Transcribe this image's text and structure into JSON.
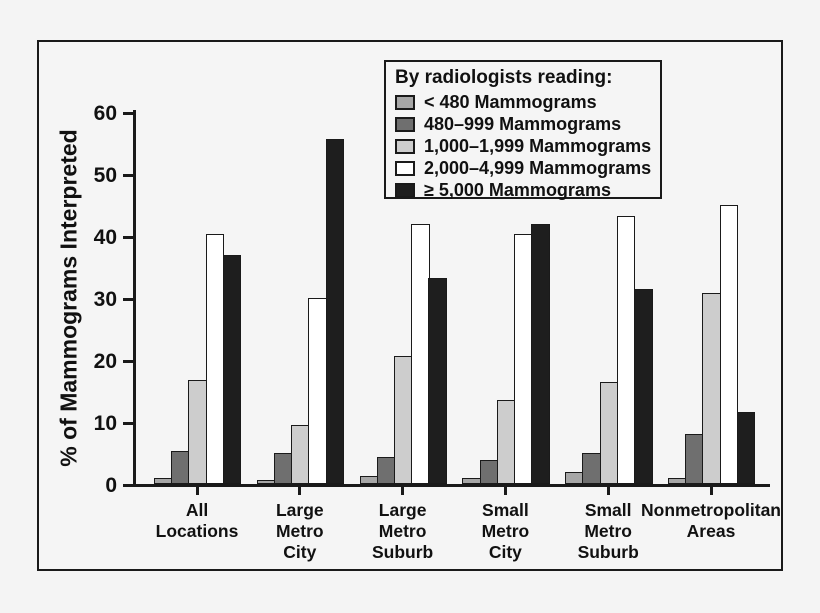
{
  "page": {
    "background_color": "#f4f4f4"
  },
  "chart_data": {
    "type": "bar",
    "title": "",
    "xlabel": "",
    "ylabel": "% of Mammograms Interpreted",
    "ylim": [
      0,
      60
    ],
    "yticks": [
      0,
      10,
      20,
      30,
      40,
      50,
      60
    ],
    "grid": false,
    "legend_position": "top-right",
    "legend_title": "By radiologists reading:",
    "bar_outline_color": "#1a1a1a",
    "categories": [
      [
        "All",
        "Locations"
      ],
      [
        "Large",
        "Metro",
        "City"
      ],
      [
        "Large",
        "Metro",
        "Suburb"
      ],
      [
        "Small",
        "Metro",
        "City"
      ],
      [
        "Small",
        "Metro",
        "Suburb"
      ],
      [
        "Nonmetropolitan",
        "Areas"
      ]
    ],
    "series": [
      {
        "name": "< 480 Mammograms",
        "color": "#a7a7a7",
        "values": [
          1.0,
          0.7,
          1.3,
          0.9,
          1.9,
          1.0
        ]
      },
      {
        "name": "480–999 Mammograms",
        "color": "#6f6f6f",
        "values": [
          5.3,
          5.0,
          4.3,
          3.9,
          5.0,
          8.0
        ]
      },
      {
        "name": "1,000–1,999 Mammograms",
        "color": "#cdcdcd",
        "values": [
          16.8,
          9.5,
          20.6,
          13.6,
          16.5,
          30.8
        ]
      },
      {
        "name": "2,000–4,999 Mammograms",
        "color": "#ffffff",
        "values": [
          40.3,
          30.0,
          41.9,
          40.3,
          43.3,
          45.0
        ]
      },
      {
        "name": "≥ 5,000 Mammograms",
        "color": "#1e1e1e",
        "values": [
          36.9,
          55.6,
          33.2,
          42.0,
          31.5,
          11.6
        ]
      }
    ]
  }
}
